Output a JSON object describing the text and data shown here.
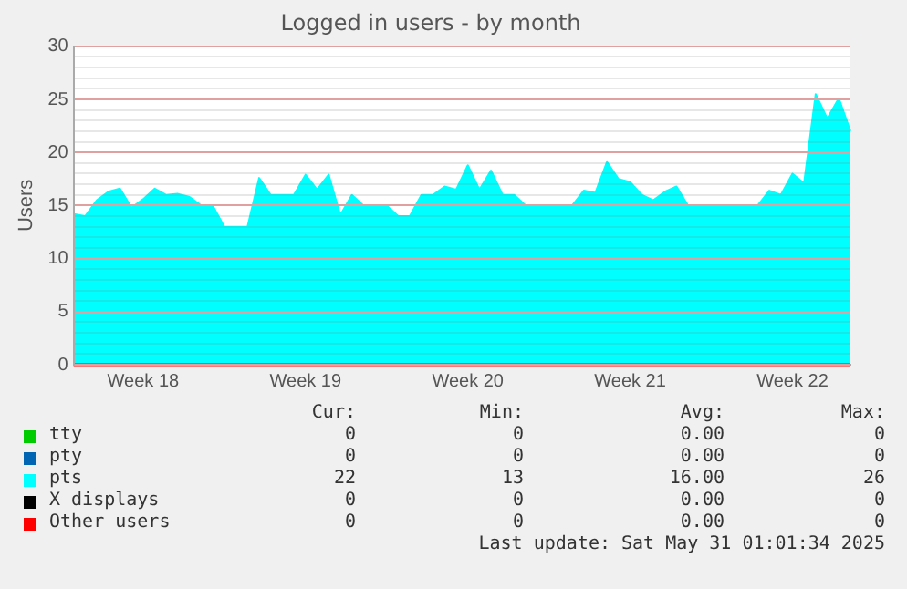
{
  "chart_data": {
    "type": "area",
    "title": "Logged in users - by month",
    "ylabel": "Users",
    "categories": [
      null,
      null,
      null,
      null,
      null,
      null,
      "Week 18",
      null,
      null,
      null,
      null,
      null,
      null,
      null,
      null,
      null,
      null,
      null,
      null,
      null,
      "Week 19",
      null,
      null,
      null,
      null,
      null,
      null,
      null,
      null,
      null,
      null,
      null,
      null,
      null,
      "Week 20",
      null,
      null,
      null,
      null,
      null,
      null,
      null,
      null,
      null,
      null,
      null,
      null,
      null,
      "Week 21",
      null,
      null,
      null,
      null,
      null,
      null,
      null,
      null,
      null,
      null,
      null,
      null,
      null,
      "Week 22",
      null,
      null,
      null,
      null,
      null
    ],
    "ylim": [
      0,
      30
    ],
    "yticks": [
      0,
      {
        "value": 1,
        "label": null
      },
      {
        "value": 2,
        "label": null
      },
      {
        "value": 3,
        "label": null
      },
      {
        "value": 4,
        "label": null
      },
      5,
      {
        "value": 6,
        "label": null
      },
      {
        "value": 7,
        "label": null
      },
      {
        "value": 8,
        "label": null
      },
      {
        "value": 9,
        "label": null
      },
      10,
      {
        "value": 11,
        "label": null
      },
      {
        "value": 12,
        "label": null
      },
      {
        "value": 13,
        "label": null
      },
      {
        "value": 14,
        "label": null
      },
      15,
      {
        "value": 16,
        "label": null
      },
      {
        "value": 17,
        "label": null
      },
      {
        "value": 18,
        "label": null
      },
      {
        "value": 19,
        "label": null
      },
      20,
      {
        "value": 21,
        "label": null
      },
      {
        "value": 22,
        "label": null
      },
      {
        "value": 23,
        "label": null
      },
      {
        "value": 24,
        "label": null
      },
      25,
      {
        "value": 26,
        "label": null
      },
      {
        "value": 27,
        "label": null
      },
      {
        "value": 28,
        "label": null
      },
      {
        "value": 29,
        "label": null
      },
      30
    ],
    "grid": "y",
    "legend": "bottom",
    "marker": "none",
    "series": [
      {
        "name": "tty",
        "type": "line",
        "color": "#00cc00",
        "values": [
          null,
          null,
          null,
          null,
          null,
          null,
          null,
          null,
          null,
          null,
          null,
          null,
          null,
          null,
          null,
          null,
          null,
          null,
          null,
          null,
          null,
          null,
          null,
          null,
          null,
          null,
          null,
          null,
          null,
          null,
          null,
          null,
          null,
          null,
          null,
          null,
          null,
          null,
          null,
          null,
          null,
          null,
          null,
          null,
          null,
          null,
          null,
          null,
          null,
          null,
          null,
          null,
          null,
          null,
          null,
          null,
          null,
          null,
          null,
          null,
          null,
          null,
          null,
          null,
          null,
          null,
          null,
          null
        ]
      },
      {
        "name": "pty",
        "type": "line",
        "color": "#0066b3",
        "values": [
          null,
          null,
          null,
          null,
          null,
          null,
          null,
          null,
          null,
          null,
          null,
          null,
          null,
          null,
          null,
          null,
          null,
          null,
          null,
          null,
          null,
          null,
          null,
          null,
          null,
          null,
          null,
          null,
          null,
          null,
          null,
          null,
          null,
          null,
          null,
          null,
          null,
          null,
          null,
          null,
          null,
          null,
          null,
          null,
          null,
          null,
          null,
          null,
          null,
          null,
          null,
          null,
          null,
          null,
          null,
          null,
          null,
          null,
          null,
          null,
          null,
          null,
          null,
          null,
          null,
          null,
          null,
          null
        ]
      },
      {
        "name": "pts",
        "color": "#00ffff",
        "values": [
          14.2,
          14,
          15.5,
          16.3,
          16.6,
          14.8,
          15.6,
          16.6,
          16,
          16.1,
          15.8,
          15,
          15,
          13,
          13,
          13,
          17.6,
          16,
          16,
          16,
          17.9,
          16.5,
          17.9,
          14.1,
          16,
          15,
          15,
          15,
          14,
          14,
          16,
          16,
          16.8,
          16.5,
          18.8,
          16.5,
          18.3,
          16,
          16,
          15,
          15,
          15,
          15,
          15,
          16.4,
          16.2,
          19.1,
          17.5,
          17.2,
          16,
          15.5,
          16.3,
          16.8,
          15,
          15,
          15,
          15,
          15,
          15,
          15,
          16.4,
          16,
          18,
          17.1,
          25.5,
          23.2,
          25.1,
          22
        ]
      },
      {
        "name": "X displays",
        "type": "line",
        "color": "#000000",
        "values": [
          null,
          null,
          null,
          null,
          null,
          null,
          null,
          null,
          null,
          null,
          null,
          null,
          null,
          null,
          null,
          null,
          null,
          null,
          null,
          null,
          null,
          null,
          null,
          null,
          null,
          null,
          null,
          null,
          null,
          null,
          null,
          null,
          null,
          null,
          null,
          null,
          null,
          null,
          null,
          null,
          null,
          null,
          null,
          null,
          null,
          null,
          null,
          null,
          null,
          null,
          null,
          null,
          null,
          null,
          null,
          null,
          null,
          null,
          null,
          null,
          null,
          null,
          null,
          null,
          null,
          null,
          null,
          null
        ]
      },
      {
        "name": "Other users",
        "type": "line",
        "color": "#ff0000",
        "values": [
          0,
          0,
          0,
          0,
          0,
          0,
          0,
          0,
          0,
          0,
          0,
          0,
          0,
          0,
          0,
          0,
          0,
          0,
          0,
          0,
          0,
          0,
          0,
          0,
          0,
          0,
          0,
          0,
          0,
          0,
          0,
          0,
          0,
          0,
          0,
          0,
          0,
          0,
          0,
          0,
          0,
          0,
          0,
          0,
          0,
          0,
          0,
          0,
          0,
          0,
          0,
          0,
          0,
          0,
          0,
          0,
          0,
          0,
          0,
          0,
          0,
          0,
          0,
          0,
          0,
          0,
          0,
          0
        ]
      }
    ],
    "annotations": [
      "Cur:",
      "Min:",
      "Avg:",
      "Max:",
      "0",
      "0",
      "0.00",
      "0",
      "0",
      "0",
      "0.00",
      "0",
      "22",
      "13",
      "16.00",
      "26",
      "0",
      "0",
      "0.00",
      "0",
      "0",
      "0",
      "0.00",
      "0",
      "Last update: Sat May 31 01:01:34 2025"
    ]
  }
}
